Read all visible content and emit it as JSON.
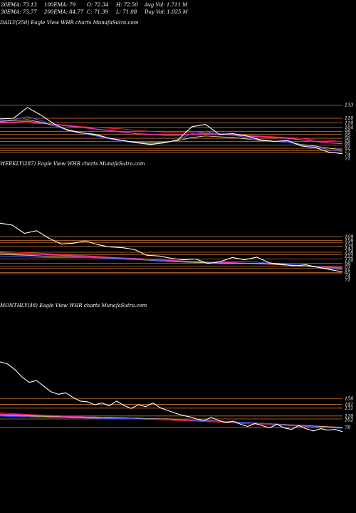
{
  "header": {
    "ema20": "20EMA: 73.13",
    "ema100": "100EMA: 79",
    "open": "O: 72.34",
    "high": "H: 72.50",
    "avg_vol": "Avg Vol: 1.711 M",
    "ema30": "30EMA: 73.77",
    "ema200": "200EMA: 84.77",
    "close": "C: 71.39",
    "low": "L: 71.08",
    "day_vol": "Day Vol: 1.025 M"
  },
  "colors": {
    "background": "#000000",
    "price": "#ffffff",
    "level_line": "#c87533",
    "ema_fast": "#3355ff",
    "ema_mid": "#e8d27a",
    "ema_slow": "#ff33cc",
    "ema_red": "#ff2222"
  },
  "chart_data": [
    {
      "type": "line",
      "title": "DAILY(250) Eagle View WHR charts MunafaSutra.com",
      "levels": [
        133,
        116,
        110,
        104,
        99,
        95,
        90,
        86,
        81,
        77,
        74,
        71
      ],
      "y_labels": [
        "133",
        "116",
        "110",
        "104",
        "99",
        "95",
        "90",
        "86",
        "81",
        "77",
        "74",
        "71"
      ],
      "ylim": [
        66,
        140
      ],
      "x": [
        0,
        10,
        20,
        30,
        40,
        50,
        60,
        70,
        80,
        90,
        100,
        110,
        120,
        130,
        140,
        150,
        160,
        170,
        180,
        190,
        200,
        210,
        220,
        230,
        240,
        250
      ],
      "series": [
        {
          "role": "price",
          "values": [
            115,
            116,
            130,
            120,
            108,
            100,
            97,
            95,
            90,
            87,
            84,
            82,
            84,
            88,
            105,
            108,
            95,
            96,
            93,
            88,
            86,
            87,
            80,
            78,
            72,
            70
          ]
        },
        {
          "role": "ema_fast",
          "values": [
            113,
            114,
            118,
            113,
            106,
            100,
            96,
            93,
            89,
            86,
            84,
            83,
            84,
            88,
            96,
            99,
            95,
            94,
            91,
            88,
            86,
            85,
            81,
            79,
            75,
            73
          ]
        },
        {
          "role": "ema_mid",
          "values": [
            112,
            113,
            114,
            111,
            106,
            101,
            97,
            94,
            90,
            87,
            85,
            84,
            85,
            87,
            91,
            93,
            92,
            91,
            89,
            87,
            86,
            85,
            82,
            80,
            77,
            75
          ]
        },
        {
          "role": "ema_slow",
          "values": [
            111,
            111,
            112,
            110,
            108,
            106,
            104,
            102,
            100,
            98,
            96,
            95,
            94,
            94,
            95,
            96,
            95,
            94,
            93,
            92,
            91,
            90,
            88,
            86,
            84,
            83
          ]
        },
        {
          "role": "ema_red",
          "values": [
            110,
            110,
            110,
            109,
            108,
            107,
            105,
            104,
            103,
            102,
            100,
            99,
            98,
            97,
            97,
            97,
            96,
            95,
            94,
            93,
            92,
            91,
            90,
            88,
            87,
            86
          ]
        }
      ]
    },
    {
      "type": "line",
      "title": "WEEKLY(287) Eagle View WHR charts MunafaSutra.com",
      "levels": [
        169,
        159,
        154,
        143,
        128,
        122,
        110,
        99,
        91,
        85,
        74,
        71
      ],
      "y_labels": [
        "169",
        "159",
        "154",
        "143",
        "128",
        "122",
        "110",
        "99",
        "91",
        "85",
        "74",
        "71"
      ],
      "ylim": [
        60,
        230
      ],
      "x": [
        0,
        1,
        2,
        3,
        4,
        5,
        6,
        7,
        8,
        9,
        10,
        11,
        12,
        13,
        14,
        15,
        16,
        17,
        18,
        19,
        20,
        21,
        22,
        23,
        24,
        25,
        26,
        27,
        28
      ],
      "series": [
        {
          "role": "price",
          "values": [
            205,
            200,
            178,
            185,
            165,
            150,
            152,
            158,
            148,
            142,
            140,
            135,
            120,
            118,
            112,
            108,
            110,
            98,
            103,
            114,
            108,
            115,
            100,
            96,
            92,
            95,
            88,
            82,
            76
          ]
        },
        {
          "role": "ema_fast",
          "values": [
            118,
            117,
            116,
            115,
            114,
            114,
            114,
            114,
            113,
            112,
            111,
            110,
            108,
            106,
            104,
            104,
            104,
            102,
            102,
            104,
            103,
            102,
            99,
            97,
            95,
            93,
            90,
            86,
            82
          ]
        },
        {
          "role": "ema_mid",
          "values": [
            122,
            121,
            120,
            119,
            117,
            116,
            115,
            114,
            113,
            112,
            110,
            109,
            107,
            105,
            103,
            102,
            101,
            100,
            99,
            99,
            99,
            98,
            97,
            95,
            93,
            91,
            88,
            85,
            82
          ]
        },
        {
          "role": "ema_slow",
          "values": [
            126,
            125,
            124,
            123,
            121,
            120,
            118,
            117,
            115,
            114,
            112,
            111,
            109,
            107,
            106,
            104,
            103,
            102,
            101,
            100,
            99,
            98,
            97,
            95,
            94,
            92,
            90,
            88,
            86
          ]
        },
        {
          "role": "ema_red",
          "values": [
            130,
            129,
            127,
            126,
            124,
            122,
            120,
            119,
            117,
            115,
            113,
            112,
            110,
            108,
            107,
            105,
            104,
            102,
            101,
            100,
            99,
            98,
            96,
            95,
            93,
            92,
            90,
            89,
            88
          ]
        }
      ]
    },
    {
      "type": "line",
      "title": "MONTHLY(48) Eagle View WHR charts MunafaSutra.com",
      "levels": [
        156,
        141,
        131,
        110,
        102,
        79
      ],
      "y_labels": [
        "156",
        "141",
        "131",
        "110",
        "102",
        "79"
      ],
      "ylim": [
        60,
        270
      ],
      "x": [
        0,
        1,
        2,
        3,
        4,
        5,
        6,
        7,
        8,
        9,
        10,
        11,
        12,
        13,
        14,
        15,
        16,
        17,
        18,
        19,
        20,
        21,
        22,
        23,
        24,
        25,
        26,
        27,
        28,
        29,
        30,
        31,
        32,
        33,
        34,
        35,
        36,
        37,
        38,
        39,
        40,
        41,
        42,
        43,
        44,
        45,
        46,
        47
      ],
      "series": [
        {
          "role": "price",
          "values": [
            255,
            250,
            235,
            215,
            200,
            205,
            190,
            175,
            168,
            172,
            160,
            150,
            148,
            140,
            145,
            137,
            150,
            138,
            130,
            140,
            135,
            145,
            132,
            125,
            118,
            112,
            108,
            102,
            98,
            106,
            98,
            92,
            96,
            88,
            82,
            90,
            84,
            78,
            88,
            78,
            74,
            84,
            76,
            70,
            76,
            72,
            74,
            68
          ]
        },
        {
          "role": "ema_fast",
          "values": [
            110,
            109,
            109,
            108,
            108,
            107,
            107,
            106,
            106,
            106,
            105,
            105,
            104,
            104,
            104,
            103,
            103,
            103,
            103,
            102,
            102,
            102,
            101,
            101,
            100,
            100,
            99,
            98,
            97,
            96,
            96,
            95,
            94,
            93,
            92,
            91,
            90,
            89,
            88,
            86,
            85,
            84,
            83,
            82,
            80,
            79,
            78,
            77
          ]
        },
        {
          "role": "ema_mid",
          "values": [
            112,
            111,
            111,
            110,
            110,
            109,
            109,
            108,
            108,
            107,
            107,
            107,
            106,
            106,
            105,
            105,
            105,
            104,
            104,
            104,
            103,
            103,
            102,
            102,
            101,
            100,
            99,
            98,
            97,
            97,
            96,
            95,
            94,
            93,
            92,
            91,
            90,
            89,
            88,
            87,
            86,
            85,
            84,
            83,
            82,
            81,
            80,
            79
          ]
        },
        {
          "role": "ema_slow",
          "values": [
            115,
            114,
            114,
            113,
            112,
            112,
            111,
            110,
            110,
            109,
            108,
            108,
            107,
            107,
            106,
            106,
            105,
            105,
            104,
            104,
            103,
            103,
            102,
            102,
            101,
            100,
            99,
            99,
            98,
            97,
            96,
            95,
            94,
            93,
            92,
            91,
            90,
            89,
            88,
            87,
            86,
            85,
            84,
            83,
            82,
            81,
            80,
            79
          ]
        },
        {
          "role": "ema_red",
          "values": [
            118,
            117,
            116,
            115,
            114,
            113,
            112,
            111,
            110,
            109,
            108,
            108,
            107,
            106,
            105,
            105,
            104,
            103,
            103,
            102,
            101,
            101,
            100,
            99,
            98,
            97,
            97,
            96,
            95,
            94,
            93,
            92,
            91,
            90,
            89,
            88,
            87,
            86,
            86,
            85,
            84,
            83,
            82,
            81,
            80,
            80,
            79,
            78
          ]
        }
      ]
    }
  ]
}
